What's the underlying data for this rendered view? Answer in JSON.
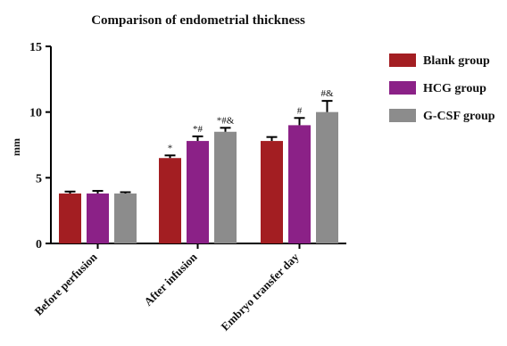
{
  "chart_data": {
    "type": "bar",
    "title": "Comparison of endometrial thickness",
    "xlabel": "",
    "ylabel": "mm",
    "ylim": [
      0,
      15
    ],
    "yticks": [
      "0",
      "5",
      "10",
      "15"
    ],
    "categories": [
      "Before perfusion",
      "After infusion",
      "Embryo transfer day"
    ],
    "series": [
      {
        "name": "Blank group",
        "color": "#a31e22",
        "values": [
          3.8,
          6.5,
          7.8
        ],
        "errors": [
          0.15,
          0.2,
          0.3
        ],
        "annotations": [
          "",
          "*",
          ""
        ]
      },
      {
        "name": "HCG group",
        "color": "#8b2187",
        "values": [
          3.8,
          7.8,
          9.0
        ],
        "errors": [
          0.2,
          0.35,
          0.55
        ],
        "annotations": [
          "",
          "*#",
          "#"
        ]
      },
      {
        "name": "G-CSF group",
        "color": "#8c8c8c",
        "values": [
          3.8,
          8.5,
          10.0
        ],
        "errors": [
          0.1,
          0.3,
          0.85
        ],
        "annotations": [
          "",
          "*#&",
          "#&"
        ]
      }
    ],
    "legend_position": "right",
    "grid": false
  }
}
